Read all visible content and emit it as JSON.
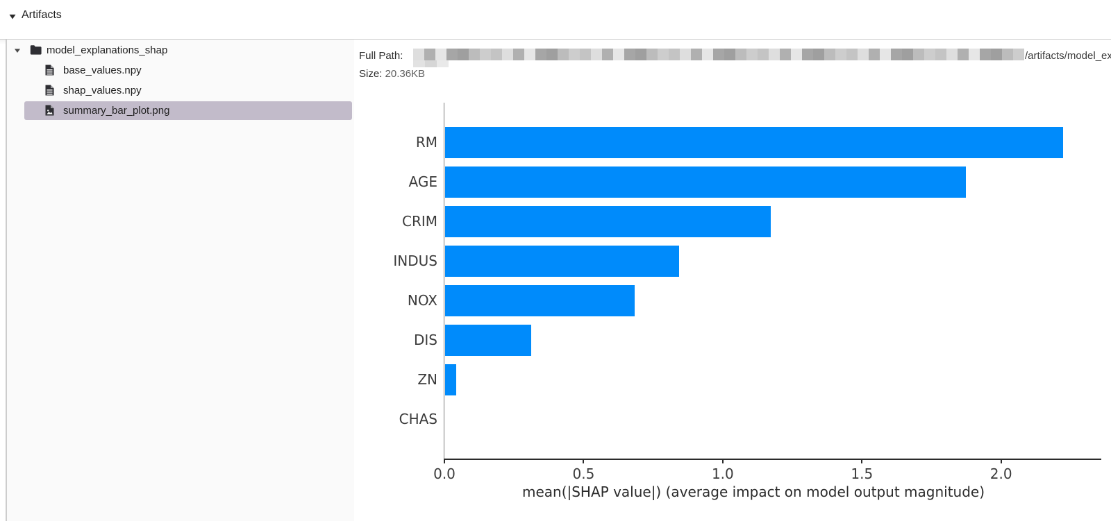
{
  "header": {
    "title": "Artifacts"
  },
  "file_tree": {
    "folder": {
      "name": "model_explanations_shap",
      "expanded": true
    },
    "files": [
      {
        "name": "base_values.npy",
        "icon": "file-text-icon",
        "selected": false
      },
      {
        "name": "shap_values.npy",
        "icon": "file-text-icon",
        "selected": false
      },
      {
        "name": "summary_bar_plot.png",
        "icon": "file-image-icon",
        "selected": true
      }
    ]
  },
  "details": {
    "full_path_label": "Full Path:",
    "full_path_redacted": true,
    "full_path_visible_tail": "/artifacts/model_ex",
    "size_label": "Size:",
    "size_value": "20.36KB"
  },
  "colors": {
    "bar_blue": "#008bfb",
    "selection": "#c2bbca",
    "panel_bg": "#fafafa"
  },
  "chart_data": {
    "type": "bar",
    "orientation": "horizontal",
    "title": "",
    "categories": [
      "RM",
      "AGE",
      "CRIM",
      "INDUS",
      "NOX",
      "DIS",
      "ZN",
      "CHAS"
    ],
    "values": [
      2.22,
      1.87,
      1.17,
      0.84,
      0.68,
      0.31,
      0.04,
      0.0
    ],
    "xlabel": "mean(|SHAP value|) (average impact on model output magnitude)",
    "ylabel": "",
    "xticks": [
      0.0,
      0.5,
      1.0,
      1.5,
      2.0
    ],
    "xlim": [
      0,
      2.36
    ],
    "grid": false,
    "legend": null,
    "bar_color": "#008bfb"
  }
}
